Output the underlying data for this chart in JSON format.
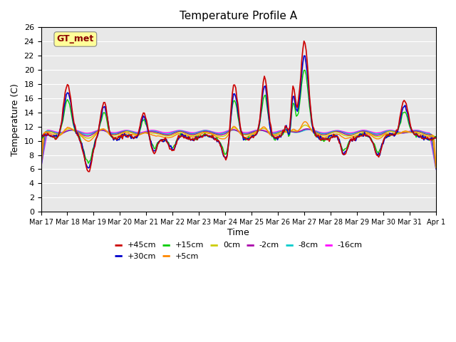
{
  "title": "Temperature Profile A",
  "xlabel": "Time",
  "ylabel": "Temperature (C)",
  "ylim": [
    0,
    26
  ],
  "yticks": [
    0,
    2,
    4,
    6,
    8,
    10,
    12,
    14,
    16,
    18,
    20,
    22,
    24,
    26
  ],
  "xtick_positions": [
    0,
    1,
    2,
    3,
    4,
    5,
    6,
    7,
    8,
    9,
    10,
    11,
    12,
    13,
    14,
    15
  ],
  "xtick_labels": [
    "Mar 17",
    "Mar 18",
    "Mar 19",
    "Mar 20",
    "Mar 21",
    "Mar 22",
    "Mar 23",
    "Mar 24",
    "Mar 25",
    "Mar 26",
    "Mar 27",
    "Mar 28",
    "Mar 29",
    "Mar 30",
    "Mar 31",
    "Apr 1"
  ],
  "series_colors": {
    "+45cm": "#cc0000",
    "+30cm": "#0000cc",
    "+15cm": "#00cc00",
    "+5cm": "#ff8800",
    "0cm": "#cccc00",
    "-2cm": "#aa00aa",
    "-8cm": "#00cccc",
    "-16cm": "#ff00ff"
  },
  "gt_met_label": "GT_met",
  "gt_met_text_color": "#8b0000",
  "gt_met_bg_color": "#ffff99",
  "plot_bg_color": "#e8e8e8"
}
